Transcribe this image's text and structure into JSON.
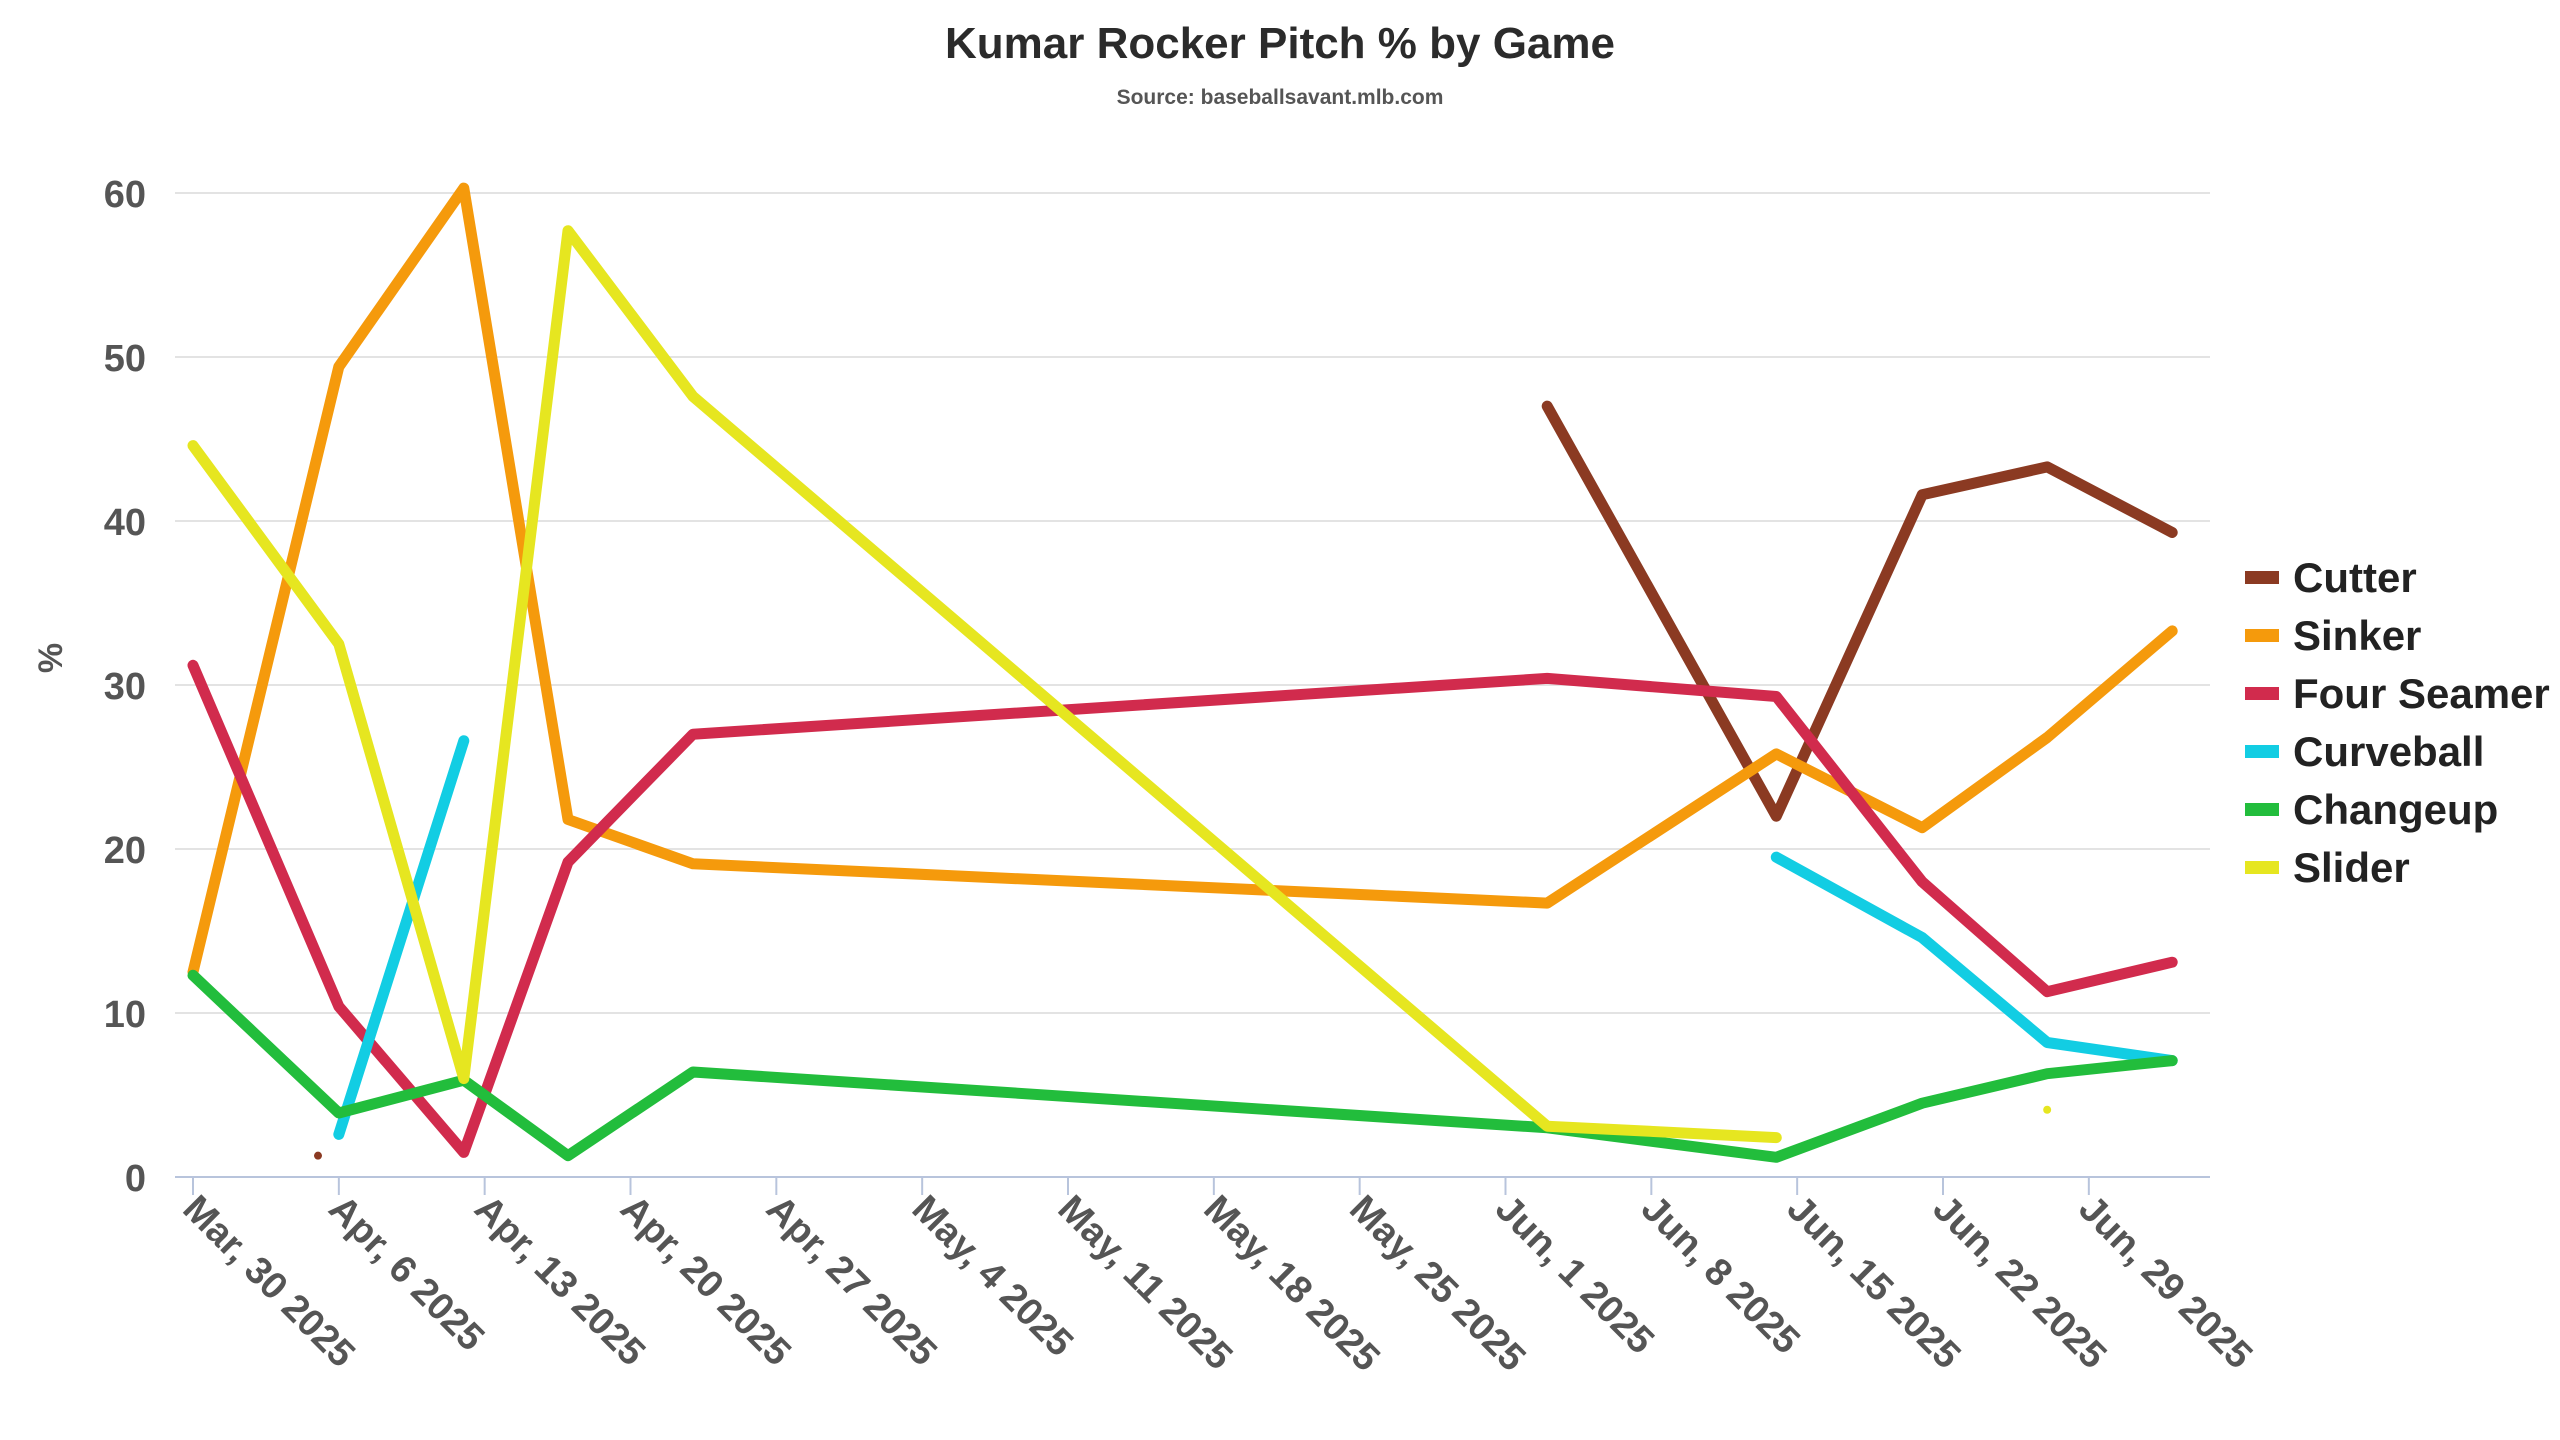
{
  "chart_data": {
    "type": "line",
    "title": "Kumar Rocker Pitch % by Game",
    "subtitle": "Source: baseballsavant.mlb.com",
    "xlabel": "",
    "ylabel": "%",
    "ylim": [
      0,
      60
    ],
    "y_ticks": [
      "0",
      "10",
      "20",
      "30",
      "40",
      "50",
      "60"
    ],
    "x_ticks": [
      "Mar, 30 2025",
      "Apr, 6 2025",
      "Apr, 13 2025",
      "Apr, 20 2025",
      "Apr, 27 2025",
      "May, 4 2025",
      "May, 11 2025",
      "May, 18 2025",
      "May, 25 2025",
      "Jun, 1 2025",
      "Jun, 8 2025",
      "Jun, 15 2025",
      "Jun, 22 2025",
      "Jun, 29 2025"
    ],
    "x_tick_dates": [
      "2025-03-30",
      "2025-04-06",
      "2025-04-13",
      "2025-04-20",
      "2025-04-27",
      "2025-05-04",
      "2025-05-11",
      "2025-05-18",
      "2025-05-25",
      "2025-06-01",
      "2025-06-08",
      "2025-06-15",
      "2025-06-22",
      "2025-06-29"
    ],
    "xlim": [
      "2025-03-30",
      "2025-07-04"
    ],
    "grid": true,
    "legend_position": "right",
    "series": [
      {
        "name": "Cutter",
        "color": "#8b3a22",
        "points": [
          {
            "x": "2025-04-05",
            "y": 1.3
          },
          {
            "x": "2025-06-03",
            "y": 47.0
          },
          {
            "x": "2025-06-14",
            "y": 22.0
          },
          {
            "x": "2025-06-21",
            "y": 41.6
          },
          {
            "x": "2025-06-27",
            "y": 43.3
          },
          {
            "x": "2025-07-03",
            "y": 39.3
          }
        ]
      },
      {
        "name": "Sinker",
        "color": "#f59a0c",
        "points": [
          {
            "x": "2025-03-30",
            "y": 12.5
          },
          {
            "x": "2025-04-06",
            "y": 49.4
          },
          {
            "x": "2025-04-12",
            "y": 60.3
          },
          {
            "x": "2025-04-17",
            "y": 21.8
          },
          {
            "x": "2025-04-23",
            "y": 19.1
          },
          {
            "x": "2025-06-03",
            "y": 16.7
          },
          {
            "x": "2025-06-14",
            "y": 25.8
          },
          {
            "x": "2025-06-21",
            "y": 21.3
          },
          {
            "x": "2025-06-27",
            "y": 26.8
          },
          {
            "x": "2025-07-03",
            "y": 33.3
          }
        ]
      },
      {
        "name": "Four Seamer",
        "color": "#d12b4d",
        "points": [
          {
            "x": "2025-03-30",
            "y": 31.2
          },
          {
            "x": "2025-04-06",
            "y": 10.4
          },
          {
            "x": "2025-04-12",
            "y": 1.5
          },
          {
            "x": "2025-04-17",
            "y": 19.2
          },
          {
            "x": "2025-04-23",
            "y": 27.0
          },
          {
            "x": "2025-06-03",
            "y": 30.4
          },
          {
            "x": "2025-06-14",
            "y": 29.3
          },
          {
            "x": "2025-06-21",
            "y": 18.0
          },
          {
            "x": "2025-06-27",
            "y": 11.3
          },
          {
            "x": "2025-07-03",
            "y": 13.1
          }
        ]
      },
      {
        "name": "Curveball",
        "color": "#12cde3",
        "points": [
          {
            "x": "2025-04-06",
            "y": 2.6
          },
          {
            "x": "2025-04-12",
            "y": 26.6
          },
          {
            "x": "2025-06-14",
            "y": 19.5
          },
          {
            "x": "2025-06-21",
            "y": 14.6
          },
          {
            "x": "2025-06-27",
            "y": 8.2
          },
          {
            "x": "2025-07-03",
            "y": 7.1
          }
        ]
      },
      {
        "name": "Changeup",
        "color": "#22bd3c",
        "points": [
          {
            "x": "2025-03-30",
            "y": 12.3
          },
          {
            "x": "2025-04-06",
            "y": 3.9
          },
          {
            "x": "2025-04-12",
            "y": 5.9
          },
          {
            "x": "2025-04-17",
            "y": 1.3
          },
          {
            "x": "2025-04-23",
            "y": 6.4
          },
          {
            "x": "2025-06-03",
            "y": 3.0
          },
          {
            "x": "2025-06-14",
            "y": 1.2
          },
          {
            "x": "2025-06-21",
            "y": 4.5
          },
          {
            "x": "2025-06-27",
            "y": 6.3
          },
          {
            "x": "2025-07-03",
            "y": 7.1
          }
        ]
      },
      {
        "name": "Slider",
        "color": "#e6e620",
        "points": [
          {
            "x": "2025-03-30",
            "y": 44.6
          },
          {
            "x": "2025-04-06",
            "y": 32.5
          },
          {
            "x": "2025-04-12",
            "y": 6.0
          },
          {
            "x": "2025-04-17",
            "y": 57.7
          },
          {
            "x": "2025-04-23",
            "y": 47.6
          },
          {
            "x": "2025-06-03",
            "y": 3.1
          },
          {
            "x": "2025-06-14",
            "y": 2.4
          },
          {
            "x": "2025-06-27",
            "y": 4.1
          }
        ]
      }
    ]
  }
}
